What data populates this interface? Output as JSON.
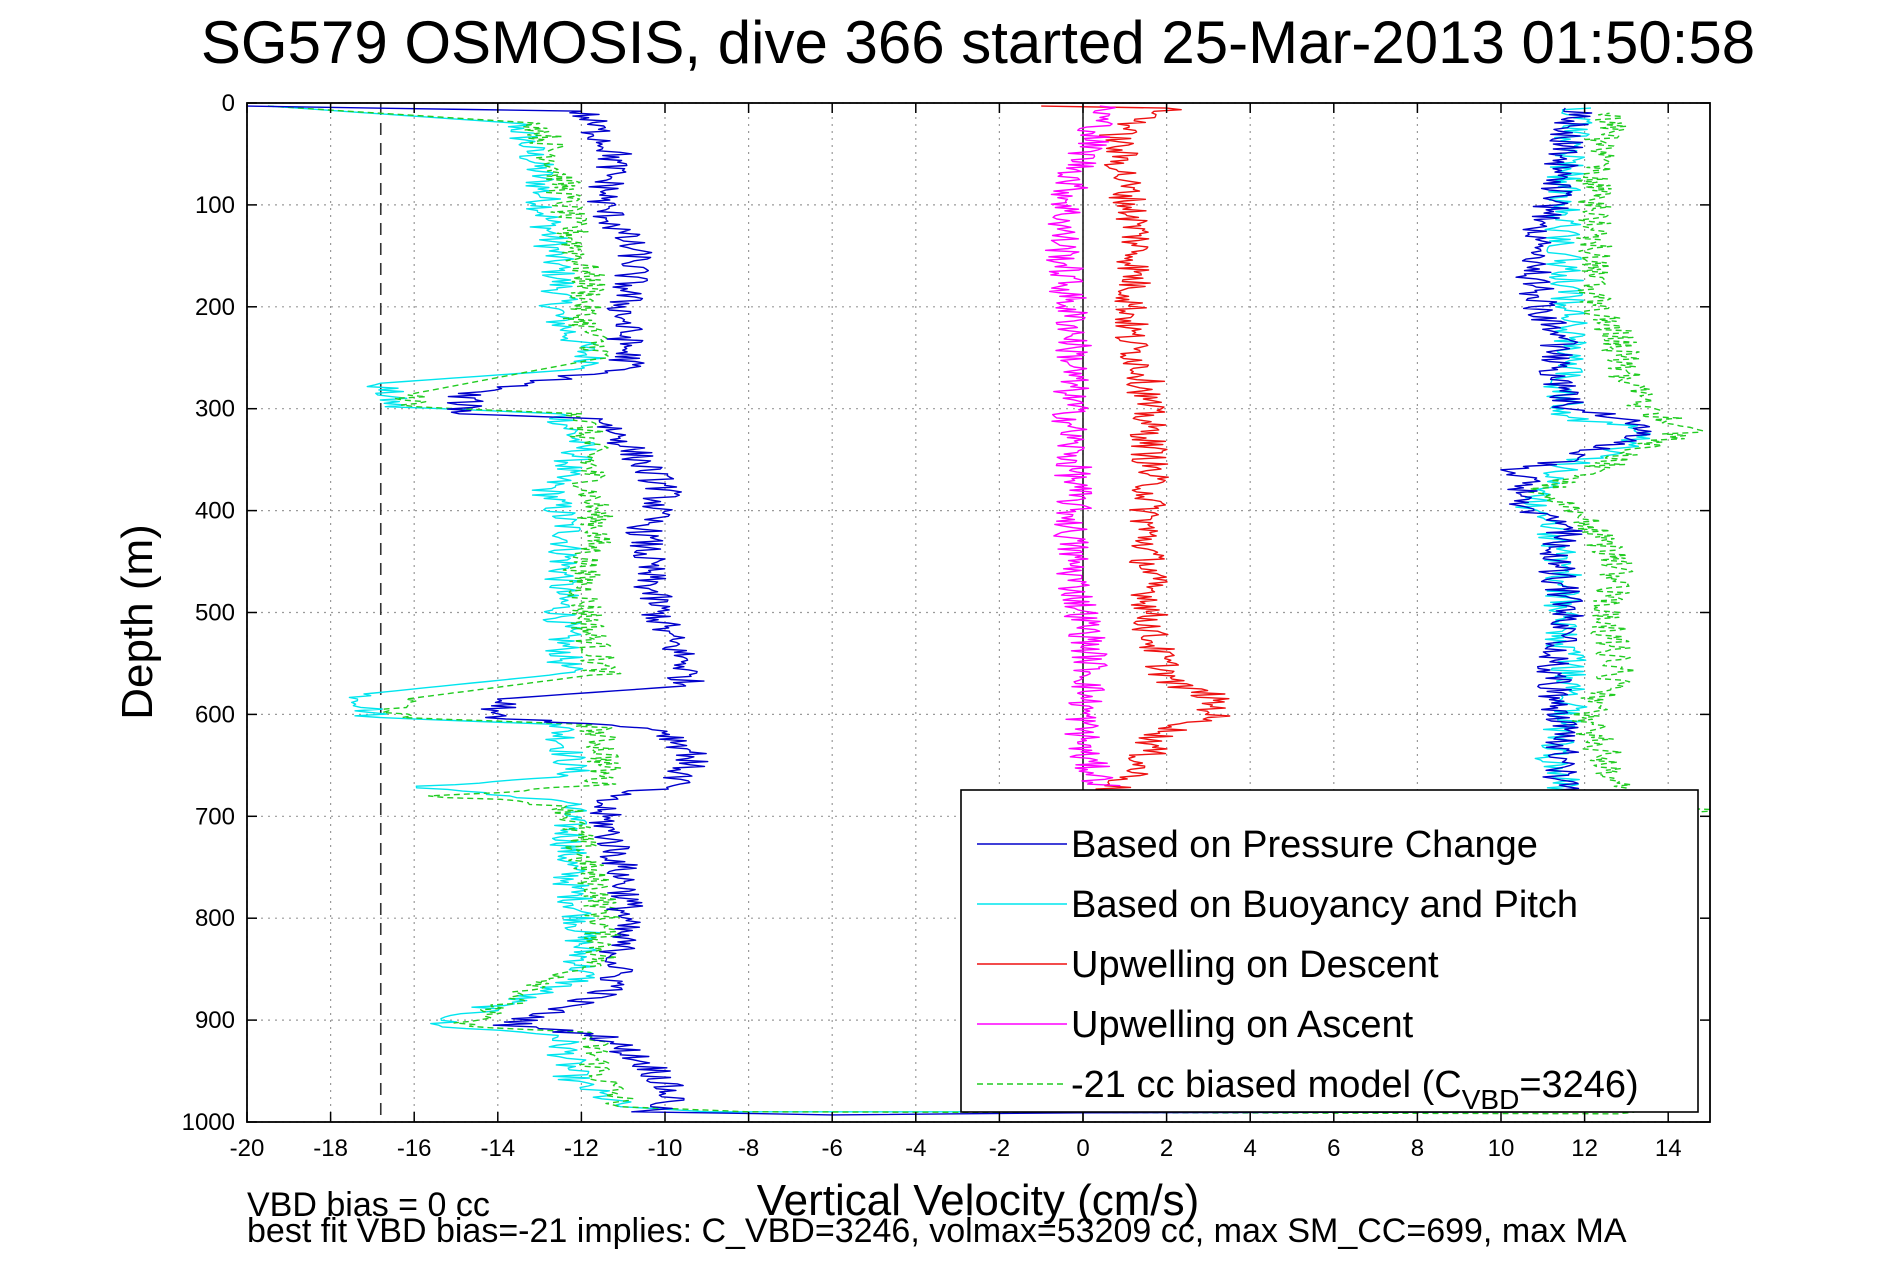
{
  "chart_data": {
    "type": "line",
    "title": "SG579 OSMOSIS, dive 366 started 25-Mar-2013 01:50:58",
    "xlabel": "Vertical Velocity (cm/s)",
    "ylabel": "Depth (m)",
    "xlim": [
      -20,
      15
    ],
    "ylim": [
      0,
      1000
    ],
    "y_reversed": true,
    "grid": true,
    "grid_style": "dotted",
    "x_ticks": [
      "-20",
      "-18",
      "-16",
      "-14",
      "-12",
      "-10",
      "-8",
      "-6",
      "-4",
      "-2",
      "0",
      "2",
      "4",
      "6",
      "8",
      "10",
      "12",
      "14"
    ],
    "y_ticks": [
      "0",
      "100",
      "200",
      "300",
      "400",
      "500",
      "600",
      "700",
      "800",
      "900",
      "1000"
    ],
    "zero_line_x": 0,
    "reference_line_x": -16.8,
    "legend_position": "bottom-right",
    "legend": [
      {
        "label": "Based on Pressure Change",
        "color": "#0000cc",
        "style": "solid"
      },
      {
        "label": "Based on Buoyancy and Pitch",
        "color": "#00e5ee",
        "style": "solid"
      },
      {
        "label": "Upwelling on Descent",
        "color": "#ee1111",
        "style": "solid"
      },
      {
        "label": "Upwelling on Ascent",
        "color": "#ff00ff",
        "style": "solid"
      },
      {
        "label_prefix": "-21 cc biased model (C",
        "label_sub": "VBD",
        "label_suffix": "=3246)",
        "color": "#22cc22",
        "style": "dashed"
      }
    ],
    "series": [
      {
        "color": "#00e5ee",
        "style": "solid",
        "points": [
          [
            -19.5,
            3
          ],
          [
            -13.5,
            20
          ],
          [
            -13,
            70
          ],
          [
            -12.8,
            120
          ],
          [
            -12.5,
            180
          ],
          [
            -12.6,
            210
          ],
          [
            -11.6,
            260
          ],
          [
            -16.8,
            275
          ],
          [
            -16.5,
            298
          ],
          [
            -12.5,
            305
          ],
          [
            -12,
            340
          ],
          [
            -12.8,
            380
          ],
          [
            -12.3,
            420
          ],
          [
            -12.5,
            480
          ],
          [
            -12.4,
            560
          ],
          [
            -17.2,
            580
          ],
          [
            -17.0,
            603
          ],
          [
            -12.5,
            610
          ],
          [
            -12.2,
            660
          ],
          [
            -16,
            672
          ],
          [
            -12.3,
            685
          ],
          [
            -12.3,
            760
          ],
          [
            -12,
            800
          ],
          [
            -12,
            860
          ],
          [
            -15.6,
            905
          ],
          [
            -12.5,
            915
          ],
          [
            -12.2,
            960
          ],
          [
            -11,
            985
          ],
          [
            -9,
            990
          ],
          [
            12,
            990
          ],
          [
            11.8,
            970
          ],
          [
            11.5,
            940
          ],
          [
            11.5,
            880
          ],
          [
            11.6,
            820
          ],
          [
            11.4,
            760
          ],
          [
            11.8,
            720
          ],
          [
            11.6,
            680
          ],
          [
            11.2,
            640
          ],
          [
            11.8,
            580
          ],
          [
            11.4,
            520
          ],
          [
            11.5,
            460
          ],
          [
            11.3,
            420
          ],
          [
            10.7,
            395
          ],
          [
            11.2,
            370
          ],
          [
            11.6,
            355
          ],
          [
            12.8,
            340
          ],
          [
            13.6,
            320
          ],
          [
            11.7,
            310
          ],
          [
            11.4,
            280
          ],
          [
            11.7,
            240
          ],
          [
            11.6,
            200
          ],
          [
            11.5,
            150
          ],
          [
            11.5,
            100
          ],
          [
            11.6,
            50
          ],
          [
            11.9,
            5
          ]
        ]
      },
      {
        "color": "#22cc22",
        "style": "dashed",
        "points": [
          [
            -19.5,
            3
          ],
          [
            -13,
            20
          ],
          [
            -12.5,
            70
          ],
          [
            -12.3,
            120
          ],
          [
            -11.8,
            180
          ],
          [
            -12.0,
            210
          ],
          [
            -11.5,
            250
          ],
          [
            -16.0,
            285
          ],
          [
            -16.2,
            298
          ],
          [
            -12,
            305
          ],
          [
            -11.8,
            340
          ],
          [
            -11.8,
            380
          ],
          [
            -11.6,
            420
          ],
          [
            -12,
            460
          ],
          [
            -11.8,
            520
          ],
          [
            -11.5,
            560
          ],
          [
            -16.2,
            585
          ],
          [
            -16.5,
            603
          ],
          [
            -11.7,
            610
          ],
          [
            -11.4,
            640
          ],
          [
            -11.6,
            670
          ],
          [
            -15.3,
            680
          ],
          [
            -12.3,
            690
          ],
          [
            -12,
            740
          ],
          [
            -11.5,
            780
          ],
          [
            -11.5,
            840
          ],
          [
            -15.0,
            906
          ],
          [
            -11.8,
            912
          ],
          [
            -11.6,
            950
          ],
          [
            -11,
            985
          ],
          [
            -8,
            990
          ],
          [
            12.8,
            992
          ],
          [
            12.7,
            960
          ],
          [
            12.5,
            920
          ],
          [
            12.5,
            860
          ],
          [
            12.4,
            820
          ],
          [
            12.5,
            780
          ],
          [
            12.6,
            740
          ],
          [
            12.7,
            700
          ],
          [
            15,
            695
          ],
          [
            12.7,
            680
          ],
          [
            12.6,
            650
          ],
          [
            12.0,
            600
          ],
          [
            12.8,
            560
          ],
          [
            12.5,
            500
          ],
          [
            12.8,
            450
          ],
          [
            12.0,
            410
          ],
          [
            11.0,
            380
          ],
          [
            12.8,
            350
          ],
          [
            14.5,
            320
          ],
          [
            13.4,
            300
          ],
          [
            13.0,
            270
          ],
          [
            12.8,
            230
          ],
          [
            12.2,
            200
          ],
          [
            12.2,
            160
          ],
          [
            12.2,
            110
          ],
          [
            12.2,
            60
          ],
          [
            12.7,
            10
          ]
        ]
      },
      {
        "color": "#0000cc",
        "style": "solid",
        "points": [
          [
            -20,
            3
          ],
          [
            -12,
            8
          ],
          [
            -11.2,
            50
          ],
          [
            -11.5,
            100
          ],
          [
            -10.7,
            150
          ],
          [
            -11,
            200
          ],
          [
            -10.9,
            260
          ],
          [
            -14.8,
            285
          ],
          [
            -14.8,
            305
          ],
          [
            -11.5,
            310
          ],
          [
            -10.8,
            340
          ],
          [
            -10,
            380
          ],
          [
            -10.5,
            420
          ],
          [
            -10.4,
            470
          ],
          [
            -10,
            520
          ],
          [
            -9.5,
            550
          ],
          [
            -9.5,
            572
          ],
          [
            -14,
            585
          ],
          [
            -13.9,
            603
          ],
          [
            -10,
            615
          ],
          [
            -9.3,
            640
          ],
          [
            -9.8,
            670
          ],
          [
            -11.5,
            680
          ],
          [
            -11.5,
            700
          ],
          [
            -11.2,
            730
          ],
          [
            -10.9,
            780
          ],
          [
            -11.1,
            820
          ],
          [
            -11.2,
            870
          ],
          [
            -13.7,
            905
          ],
          [
            -11.5,
            915
          ],
          [
            -10.2,
            950
          ],
          [
            -9.8,
            980
          ],
          [
            -10.5,
            990
          ],
          [
            -6,
            993
          ],
          [
            0,
            991
          ],
          [
            12,
            990
          ],
          [
            11.6,
            975
          ],
          [
            11.3,
            920
          ],
          [
            11.4,
            860
          ],
          [
            11.5,
            800
          ],
          [
            11.4,
            750
          ],
          [
            11.3,
            700
          ],
          [
            11.5,
            650
          ],
          [
            11.4,
            600
          ],
          [
            11.2,
            550
          ],
          [
            11.6,
            500
          ],
          [
            11.3,
            460
          ],
          [
            11.5,
            420
          ],
          [
            10.7,
            400
          ],
          [
            10.4,
            360
          ],
          [
            11.5,
            350
          ],
          [
            13.2,
            330
          ],
          [
            13.1,
            310
          ],
          [
            11.6,
            300
          ],
          [
            11.3,
            260
          ],
          [
            11.4,
            230
          ],
          [
            10.9,
            200
          ],
          [
            10.7,
            150
          ],
          [
            11.2,
            100
          ],
          [
            11.5,
            50
          ],
          [
            11.8,
            5
          ]
        ]
      },
      {
        "color": "#ee1111",
        "style": "solid",
        "points": [
          [
            -1,
            3
          ],
          [
            2,
            5
          ],
          [
            0.8,
            30
          ],
          [
            1,
            80
          ],
          [
            1.3,
            130
          ],
          [
            1.2,
            180
          ],
          [
            1.1,
            230
          ],
          [
            1.5,
            270
          ],
          [
            1.5,
            300
          ],
          [
            1.6,
            340
          ],
          [
            1.6,
            380
          ],
          [
            1.5,
            420
          ],
          [
            1.6,
            470
          ],
          [
            1.6,
            520
          ],
          [
            1.9,
            550
          ],
          [
            2.1,
            570
          ],
          [
            3,
            580
          ],
          [
            3.2,
            600
          ],
          [
            1.8,
            620
          ],
          [
            1.5,
            640
          ],
          [
            1.2,
            660
          ],
          [
            0.6,
            675
          ],
          [
            1.2,
            985
          ],
          [
            3,
            990
          ]
        ]
      },
      {
        "color": "#ff00ff",
        "style": "solid",
        "points": [
          [
            0.5,
            3
          ],
          [
            0.3,
            30
          ],
          [
            -0.3,
            80
          ],
          [
            -0.5,
            130
          ],
          [
            -0.4,
            180
          ],
          [
            -0.2,
            230
          ],
          [
            -0.3,
            280
          ],
          [
            -0.3,
            330
          ],
          [
            -0.2,
            380
          ],
          [
            -0.3,
            420
          ],
          [
            -0.2,
            470
          ],
          [
            0.1,
            520
          ],
          [
            0.2,
            560
          ],
          [
            0,
            600
          ],
          [
            0,
            640
          ],
          [
            0.5,
            670
          ]
        ]
      }
    ]
  },
  "footer": {
    "line1": "VBD bias = 0 cc",
    "line2": "best fit VBD bias=-21 implies: C_VBD=3246, volmax=53209 cc, max SM_CC=699, max MA"
  }
}
